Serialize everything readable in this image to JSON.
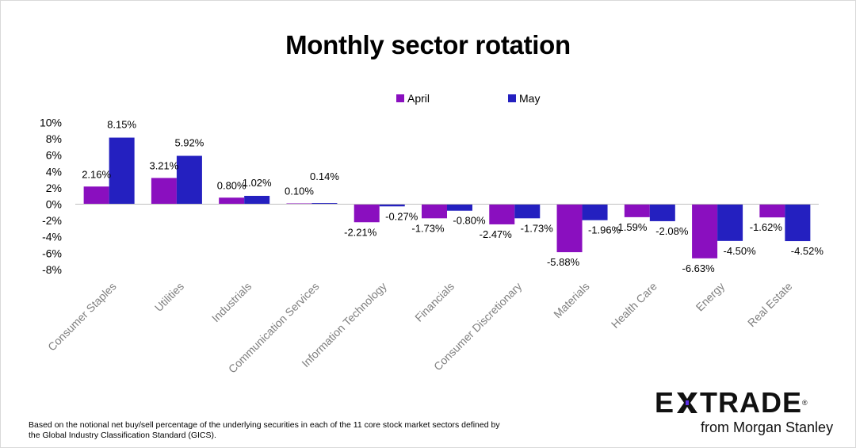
{
  "chart_data": {
    "type": "bar",
    "title": "Monthly sector rotation",
    "xlabel": "",
    "ylabel": "",
    "ylim": [
      -8,
      10
    ],
    "yticks": [
      "10%",
      "8%",
      "6%",
      "4%",
      "2%",
      "0%",
      "-2%",
      "-4%",
      "-6%",
      "-8%"
    ],
    "ytick_values": [
      10,
      8,
      6,
      4,
      2,
      0,
      -2,
      -4,
      -6,
      -8
    ],
    "grid": false,
    "legend_position": "top",
    "categories": [
      "Consumer Staples",
      "Utilities",
      "Industrials",
      "Communication Services",
      "Information Technology",
      "Financials",
      "Consumer Discretionary",
      "Materials",
      "Health Care",
      "Energy",
      "Real Estate"
    ],
    "series": [
      {
        "name": "April",
        "color": "#8a0fbf",
        "values": [
          2.16,
          3.21,
          0.8,
          0.1,
          -2.21,
          -1.73,
          -2.47,
          -5.88,
          -1.59,
          -6.63,
          -1.62
        ],
        "labels": [
          "2.16%",
          "3.21%",
          "0.80%",
          "0.10%",
          "-2.21%",
          "-1.73%",
          "-2.47%",
          "-5.88%",
          "-1.59%",
          "-6.63%",
          "-1.62%"
        ]
      },
      {
        "name": "May",
        "color": "#2420c0",
        "values": [
          8.15,
          5.92,
          1.02,
          0.14,
          -0.27,
          -0.8,
          -1.73,
          -1.96,
          -2.08,
          -4.5,
          -4.52
        ],
        "labels": [
          "8.15%",
          "5.92%",
          "1.02%",
          "0.14%",
          "-0.27%",
          "-0.80%",
          "-1.73%",
          "-1.96%",
          "-2.08%",
          "-4.50%",
          "-4.52%"
        ]
      }
    ]
  },
  "footnote": "Based on the notional net buy/sell percentage of the underlying securities in each of the 11 core stock market sectors defined by the Global Industry Classification Standard (GICS).",
  "logo": {
    "brand_left": "E",
    "brand_right": "TRADE",
    "registered": "®",
    "subtitle": "from Morgan Stanley",
    "accent_color": "#5a2ee6"
  }
}
